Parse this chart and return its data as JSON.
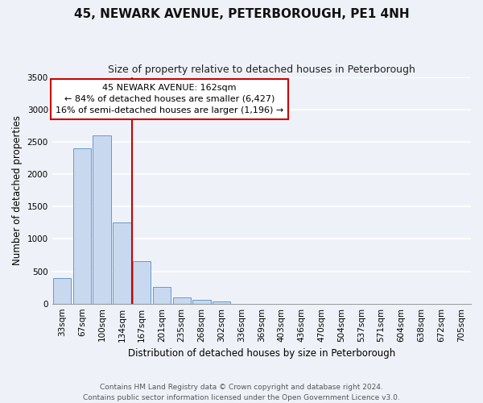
{
  "title": "45, NEWARK AVENUE, PETERBOROUGH, PE1 4NH",
  "subtitle": "Size of property relative to detached houses in Peterborough",
  "xlabel": "Distribution of detached houses by size in Peterborough",
  "ylabel": "Number of detached properties",
  "bar_labels": [
    "33sqm",
    "67sqm",
    "100sqm",
    "134sqm",
    "167sqm",
    "201sqm",
    "235sqm",
    "268sqm",
    "302sqm",
    "336sqm",
    "369sqm",
    "403sqm",
    "436sqm",
    "470sqm",
    "504sqm",
    "537sqm",
    "571sqm",
    "604sqm",
    "638sqm",
    "672sqm",
    "705sqm"
  ],
  "bar_values": [
    390,
    2400,
    2600,
    1250,
    650,
    260,
    100,
    55,
    30,
    0,
    0,
    0,
    0,
    0,
    0,
    0,
    0,
    0,
    0,
    0,
    0
  ],
  "bar_color": "#c8d9ef",
  "bar_edge_color": "#6699cc",
  "vline_color": "#cc0000",
  "annotation_title": "45 NEWARK AVENUE: 162sqm",
  "annotation_line1": "← 84% of detached houses are smaller (6,427)",
  "annotation_line2": "16% of semi-detached houses are larger (1,196) →",
  "annotation_box_color": "#ffffff",
  "annotation_box_edge_color": "#cc0000",
  "ylim": [
    0,
    3500
  ],
  "yticks": [
    0,
    500,
    1000,
    1500,
    2000,
    2500,
    3000,
    3500
  ],
  "footer_line1": "Contains HM Land Registry data © Crown copyright and database right 2024.",
  "footer_line2": "Contains public sector information licensed under the Open Government Licence v3.0.",
  "background_color": "#eef2f8",
  "grid_color": "#ffffff",
  "title_fontsize": 11,
  "subtitle_fontsize": 9,
  "axis_label_fontsize": 8.5,
  "tick_fontsize": 7.5,
  "annotation_fontsize": 8,
  "footer_fontsize": 6.5
}
